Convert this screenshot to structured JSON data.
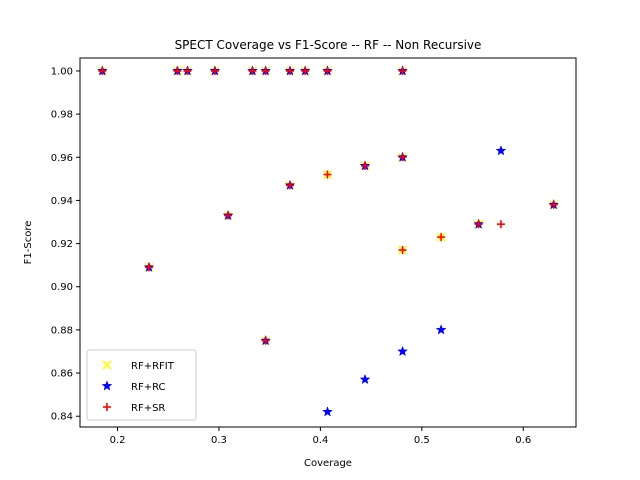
{
  "chart_data": {
    "type": "scatter",
    "title": "SPECT Coverage vs F1-Score -- RF -- Non Recursive",
    "xlabel": "Coverage",
    "ylabel": "F1-Score",
    "xlim": [
      0.163,
      0.652
    ],
    "ylim": [
      0.835,
      1.006
    ],
    "xticks": [
      "0.2",
      "0.3",
      "0.4",
      "0.5",
      "0.6"
    ],
    "yticks": [
      "0.84",
      "0.86",
      "0.88",
      "0.90",
      "0.92",
      "0.94",
      "0.96",
      "0.98",
      "1.00"
    ],
    "grid": false,
    "legend_position": "lower-left",
    "series": [
      {
        "name": "RF+RFIT",
        "marker": "x",
        "color": "#ffff00",
        "points": [
          [
            0.185,
            1.0
          ],
          [
            0.259,
            1.0
          ],
          [
            0.269,
            1.0
          ],
          [
            0.296,
            1.0
          ],
          [
            0.333,
            1.0
          ],
          [
            0.346,
            1.0
          ],
          [
            0.37,
            1.0
          ],
          [
            0.385,
            1.0
          ],
          [
            0.407,
            1.0
          ],
          [
            0.481,
            1.0
          ],
          [
            0.231,
            0.909
          ],
          [
            0.309,
            0.933
          ],
          [
            0.37,
            0.947
          ],
          [
            0.407,
            0.952
          ],
          [
            0.444,
            0.956
          ],
          [
            0.481,
            0.96
          ],
          [
            0.346,
            0.875
          ],
          [
            0.481,
            0.917
          ],
          [
            0.519,
            0.923
          ],
          [
            0.556,
            0.929
          ],
          [
            0.63,
            0.938
          ]
        ]
      },
      {
        "name": "RF+RC",
        "marker": "star",
        "color": "#0000ff",
        "points": [
          [
            0.185,
            1.0
          ],
          [
            0.259,
            1.0
          ],
          [
            0.269,
            1.0
          ],
          [
            0.296,
            1.0
          ],
          [
            0.333,
            1.0
          ],
          [
            0.346,
            1.0
          ],
          [
            0.37,
            1.0
          ],
          [
            0.385,
            1.0
          ],
          [
            0.407,
            1.0
          ],
          [
            0.481,
            1.0
          ],
          [
            0.231,
            0.909
          ],
          [
            0.309,
            0.933
          ],
          [
            0.37,
            0.947
          ],
          [
            0.444,
            0.956
          ],
          [
            0.481,
            0.96
          ],
          [
            0.346,
            0.875
          ],
          [
            0.556,
            0.929
          ],
          [
            0.63,
            0.938
          ],
          [
            0.578,
            0.963
          ],
          [
            0.519,
            0.88
          ],
          [
            0.481,
            0.87
          ],
          [
            0.444,
            0.857
          ],
          [
            0.407,
            0.842
          ]
        ]
      },
      {
        "name": "RF+SR",
        "marker": "plus",
        "color": "#ff0000",
        "points": [
          [
            0.185,
            1.0
          ],
          [
            0.259,
            1.0
          ],
          [
            0.269,
            1.0
          ],
          [
            0.296,
            1.0
          ],
          [
            0.333,
            1.0
          ],
          [
            0.346,
            1.0
          ],
          [
            0.37,
            1.0
          ],
          [
            0.385,
            1.0
          ],
          [
            0.407,
            1.0
          ],
          [
            0.481,
            1.0
          ],
          [
            0.231,
            0.909
          ],
          [
            0.309,
            0.933
          ],
          [
            0.37,
            0.947
          ],
          [
            0.407,
            0.952
          ],
          [
            0.444,
            0.956
          ],
          [
            0.481,
            0.96
          ],
          [
            0.346,
            0.875
          ],
          [
            0.481,
            0.917
          ],
          [
            0.519,
            0.923
          ],
          [
            0.556,
            0.929
          ],
          [
            0.63,
            0.938
          ],
          [
            0.578,
            0.929
          ]
        ]
      }
    ]
  }
}
